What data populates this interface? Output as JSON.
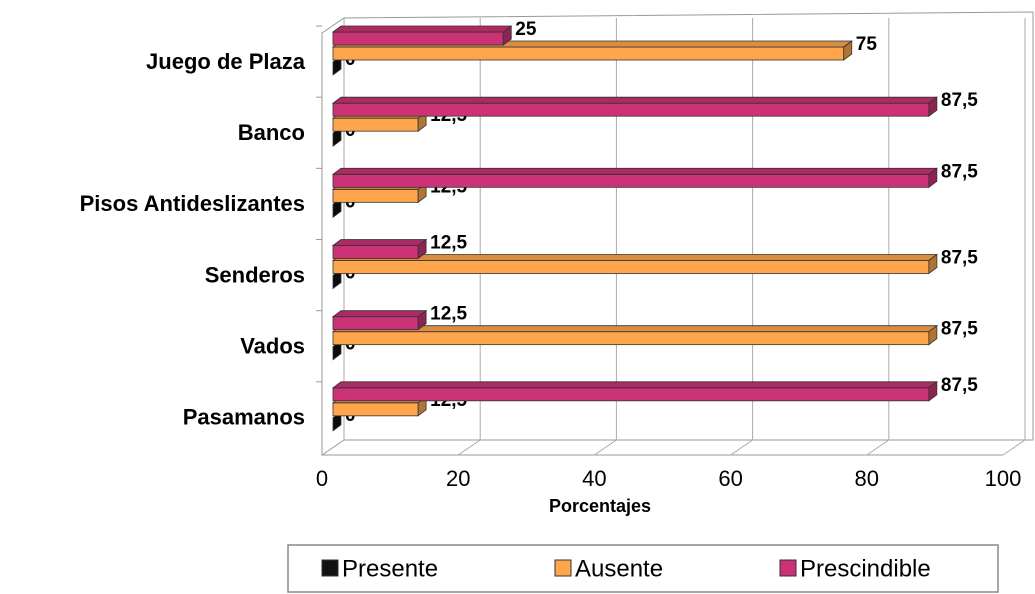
{
  "chart_data": {
    "type": "bar",
    "orientation": "horizontal",
    "three_d": true,
    "categories": [
      "Juego de Plaza",
      "Banco",
      "Pisos Antideslizantes",
      "Senderos",
      "Vados",
      "Pasamanos"
    ],
    "series": [
      {
        "name": "Presente",
        "color": "#111111",
        "values": [
          0,
          0,
          0,
          0,
          0,
          0
        ],
        "value_labels": [
          "0",
          "0",
          "0",
          "0",
          "0",
          "0"
        ]
      },
      {
        "name": "Ausente",
        "color": "#ffa64d",
        "values": [
          75,
          12.5,
          12.5,
          87.5,
          87.5,
          12.5
        ],
        "value_labels": [
          "75",
          "12,5",
          "12,5",
          "87,5",
          "87,5",
          "12,5"
        ]
      },
      {
        "name": "Prescindible",
        "color": "#cc3377",
        "values": [
          25,
          87.5,
          87.5,
          12.5,
          12.5,
          87.5
        ],
        "value_labels": [
          "25",
          "87,5",
          "87,5",
          "12,5",
          "12,5",
          "87,5"
        ]
      }
    ],
    "x_label": "Porcentajes",
    "xlim": [
      0,
      100
    ],
    "xticks": [
      0,
      20,
      40,
      60,
      80,
      100
    ],
    "grid": true,
    "legend": "bottom"
  }
}
